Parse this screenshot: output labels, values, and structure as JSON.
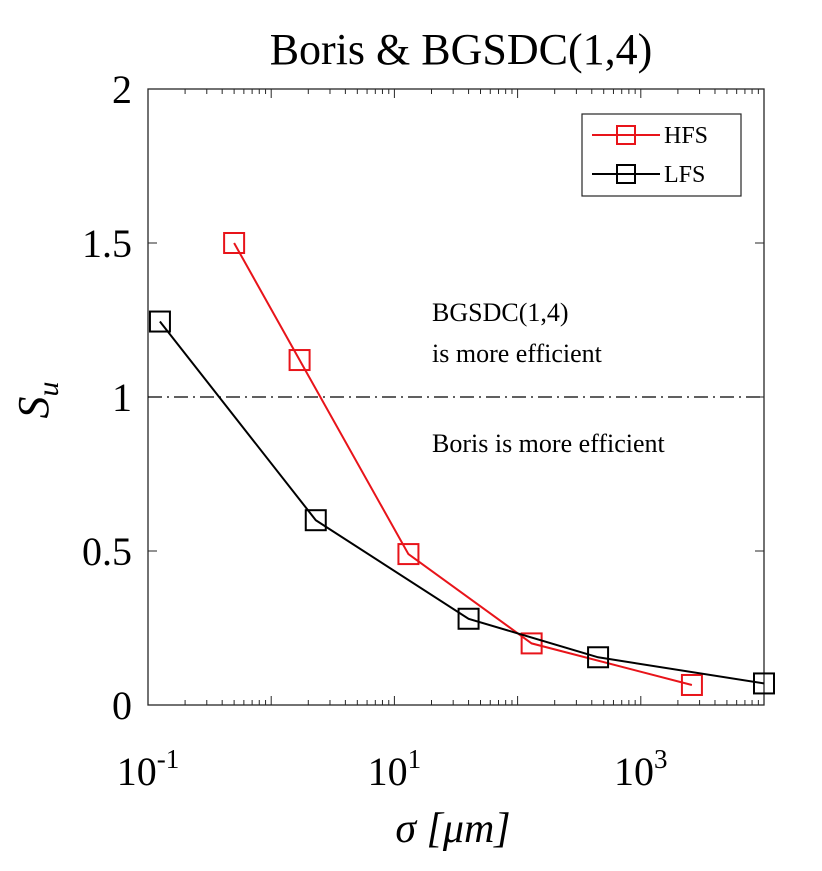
{
  "chart_data": {
    "type": "line",
    "title": "Boris & BGSDC(1,4)",
    "xlabel": "σ [μm]",
    "ylabel": "S",
    "ylabel_sub": "u",
    "xscale": "log",
    "xlim": [
      0.1,
      10000
    ],
    "ylim": [
      0,
      2
    ],
    "xticks": [
      {
        "value": 0.1,
        "base": "10",
        "exp": "-1"
      },
      {
        "value": 10,
        "base": "10",
        "exp": "1"
      },
      {
        "value": 1000,
        "base": "10",
        "exp": "3"
      }
    ],
    "yticks": [
      {
        "value": 0,
        "label": "0"
      },
      {
        "value": 0.5,
        "label": "0.5"
      },
      {
        "value": 1,
        "label": "1"
      },
      {
        "value": 1.5,
        "label": "1.5"
      },
      {
        "value": 2,
        "label": "2"
      }
    ],
    "series": [
      {
        "name": "HFS",
        "color": "#e8141a",
        "marker": "square",
        "x": [
          0.5,
          1.7,
          13,
          130,
          2600
        ],
        "y": [
          1.5,
          1.12,
          0.49,
          0.2,
          0.065
        ]
      },
      {
        "name": "LFS",
        "color": "#000000",
        "marker": "square",
        "x": [
          0.125,
          2.3,
          40,
          450,
          10000
        ],
        "y": [
          1.245,
          0.6,
          0.28,
          0.155,
          0.07
        ]
      }
    ],
    "reference_line": {
      "y": 1,
      "style": "dash-dot",
      "color": "#000000"
    },
    "annotations": {
      "above_line_1": "BGSDC(1,4)",
      "above_line_2": "is more efficient",
      "below_line": "Boris is more efficient"
    },
    "legend_position": "top-right",
    "grid": false
  }
}
